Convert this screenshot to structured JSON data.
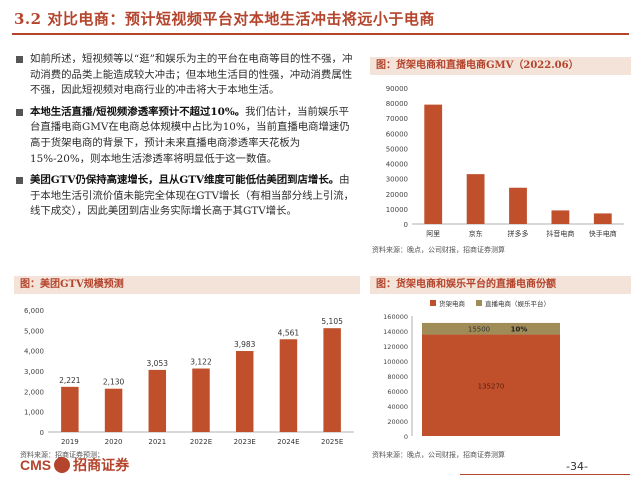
{
  "title": "3.2 对比电商：预计短视频平台对本地生活冲击将远小于电商",
  "bullets": [
    {
      "bold": "",
      "text": "如前所述，短视频等以“逛”和娱乐为主的平台在电商等目的性不强，冲动消费的品类上能造成较大冲击；但本地生活目的性强，冲动消费属性不强，因此短视频对电商行业的冲击将大于本地生活。"
    },
    {
      "bold": "本地生活直播/短视频渗透率预计不超过10%。",
      "text": "我们估计，当前娱乐平台直播电商GMV在电商总体规模中占比为10%，当前直播电商增速仍高于货架电商的背景下，预计未来直播电商渗透率天花板为15%-20%，则本地生活渗透率将明显低于这一数值。"
    },
    {
      "bold": "美团GTV仍保持高速增长，且从GTV维度可能低估美团到店增长。",
      "text": "由于本地生活引流价值未能完全体现在GTV增长（有相当部分线上引流，线下成交），因此美团到店业务实际增长高于其GTV增长。"
    }
  ],
  "panels": {
    "gmv_title": "图：货架电商和直播电商GMV（2022.06）",
    "gtv_title": "图：美团GTV规模预测",
    "share_title": "图：货架电商和娱乐平台的直播电商份额",
    "source_right": "资料来源：晚点，公司财报，招商证券测算",
    "source_left": "资料来源：招商证券预测；",
    "source_bottom": "资料来源：晚点，公司财报，招商证券测算"
  },
  "footer": {
    "logo_text": "CMS",
    "logo_cn": "招商证券",
    "page_no": "-34-"
  },
  "colors": {
    "accent": "#b4442c",
    "bar": "#c0502c",
    "bar2": "#9f8c57"
  },
  "chart_data": [
    {
      "type": "bar",
      "title": "",
      "categories": [
        "阿里",
        "京东",
        "拼多多",
        "抖音电商",
        "快手电商"
      ],
      "values": [
        79000,
        33000,
        24000,
        9000,
        7000
      ],
      "ylim": [
        0,
        90000
      ],
      "yticks": [
        "0",
        "10000",
        "20000",
        "30000",
        "40000",
        "50000",
        "60000",
        "70000",
        "80000",
        "90000"
      ]
    },
    {
      "type": "bar",
      "title": "",
      "categories": [
        "2019",
        "2020",
        "2021",
        "2022E",
        "2023E",
        "2024E",
        "2025E"
      ],
      "values": [
        2221,
        2130,
        3053,
        3122,
        3983,
        4561,
        5105
      ],
      "labels": [
        "2,221",
        "2,130",
        "3,053",
        "3,122",
        "3,983",
        "4,561",
        "5,105"
      ],
      "ylim": [
        0,
        6000
      ],
      "yticks": [
        "0",
        "1,000",
        "2,000",
        "3,000",
        "4,000",
        "5,000",
        "6,000"
      ]
    },
    {
      "type": "bar",
      "title": "",
      "stacked": true,
      "series": [
        {
          "name": "货架电商",
          "values": [
            135270
          ],
          "label": "135270"
        },
        {
          "name": "直播电商（娱乐平台）",
          "values": [
            15500
          ],
          "label": "15500",
          "share": "10%"
        }
      ],
      "ylim": [
        0,
        160000
      ],
      "yticks": [
        "0",
        "20000",
        "40000",
        "60000",
        "80000",
        "100000",
        "120000",
        "140000",
        "160000"
      ]
    }
  ]
}
